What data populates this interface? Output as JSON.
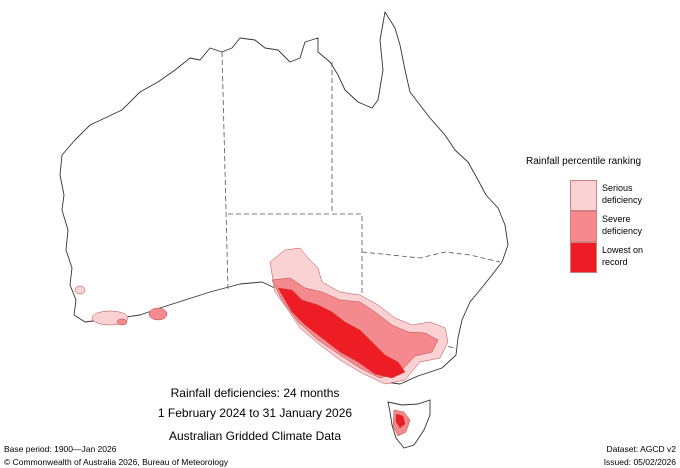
{
  "legend": {
    "title": "Rainfall percentile ranking",
    "items": [
      {
        "label": "Serious deficiency",
        "color": "#fbd2d4"
      },
      {
        "label": "Severe deficiency",
        "color": "#f58a8e"
      },
      {
        "label": "Lowest on record",
        "color": "#ee1c24"
      }
    ]
  },
  "title": {
    "line1": "Rainfall deficiencies: 24 months",
    "line2": "1 February 2024 to 31 January 2026",
    "line3": "Australian Gridded Climate Data"
  },
  "footer": {
    "base_period": "Base period: 1900—Jan 2026",
    "dataset": "Dataset: AGCD v2",
    "copyright": "© Commonwealth of Australia 2026, Bureau of Meteorology",
    "issued": "Issued: 05/02/2026"
  }
}
